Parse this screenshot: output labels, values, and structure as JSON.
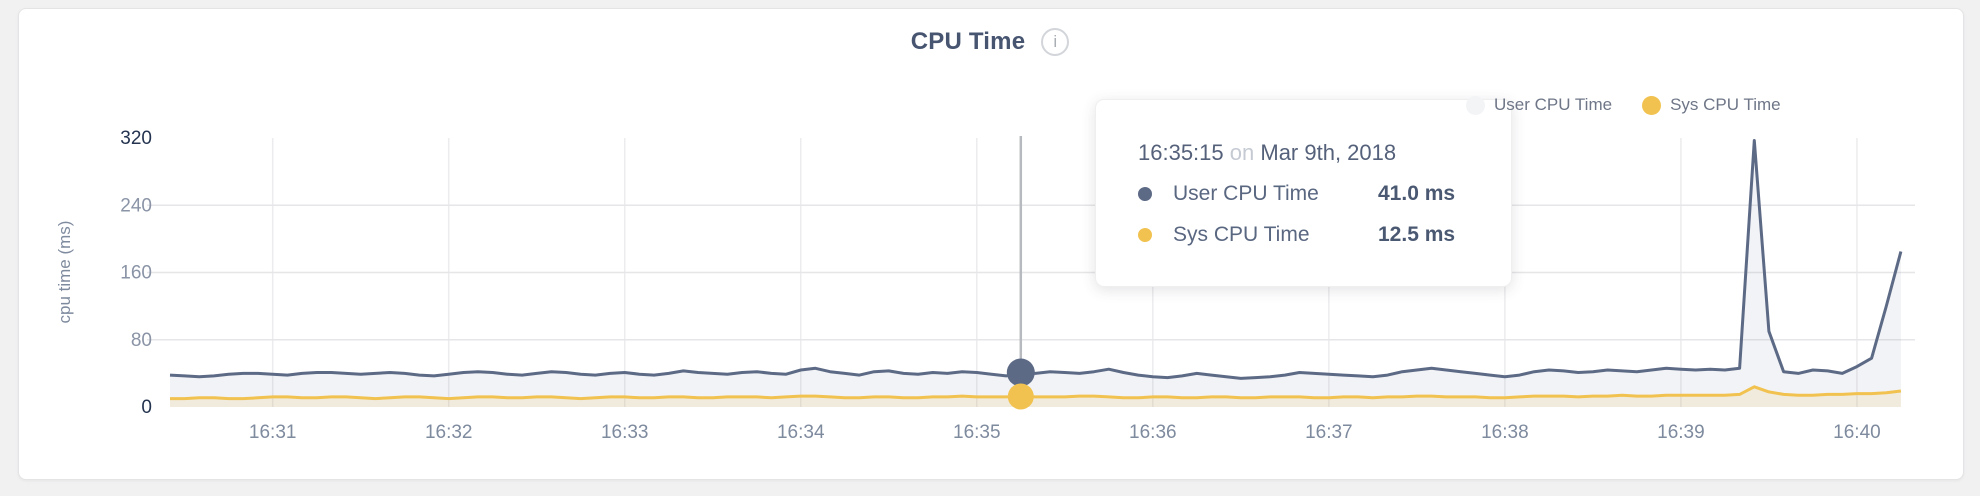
{
  "chart": {
    "title": "CPU Time",
    "info_icon": "i",
    "ylabel": "cpu time (ms)",
    "legend": [
      {
        "label": "User CPU Time",
        "marker_color": "#f3f4f6"
      },
      {
        "label": "Sys CPU Time",
        "marker_color": "#f1c250"
      }
    ]
  },
  "tooltip": {
    "time": "16:35:15",
    "conjunction": "on",
    "date": "Mar 9th, 2018",
    "rows": [
      {
        "label": "User CPU Time",
        "value": "41.0 ms",
        "color": "#5d6a86"
      },
      {
        "label": "Sys CPU Time",
        "value": "12.5 ms",
        "color": "#f1c250"
      }
    ]
  },
  "chart_data": {
    "type": "area",
    "title": "CPU Time",
    "ylabel": "cpu time (ms)",
    "ylim": [
      0,
      320
    ],
    "yticks": [
      0,
      80,
      160,
      240,
      320
    ],
    "ytick_emphasized": [
      0,
      320
    ],
    "x_tick_labels": [
      "16:31",
      "16:32",
      "16:33",
      "16:34",
      "16:35",
      "16:36",
      "16:37",
      "16:38",
      "16:39",
      "16:40"
    ],
    "start_time": "16:30:25",
    "interval_seconds": 5,
    "first_tick_index": 7,
    "ticks_every_points": 12,
    "grid": true,
    "legend_position": "top-right",
    "series": [
      {
        "name": "User CPU Time",
        "color": "#5d6a86",
        "fill": "rgba(94,107,134,0.08)",
        "values": [
          38,
          37,
          36,
          37,
          39,
          40,
          40,
          39,
          38,
          40,
          41,
          41,
          40,
          39,
          40,
          41,
          40,
          38,
          37,
          39,
          41,
          42,
          41,
          39,
          38,
          40,
          42,
          41,
          39,
          38,
          40,
          41,
          39,
          38,
          40,
          43,
          41,
          40,
          39,
          41,
          42,
          40,
          39,
          44,
          46,
          42,
          40,
          38,
          42,
          43,
          40,
          39,
          41,
          40,
          42,
          41,
          39,
          37,
          41,
          40,
          42,
          41,
          40,
          42,
          45,
          41,
          38,
          36,
          35,
          37,
          40,
          38,
          36,
          34,
          35,
          36,
          38,
          41,
          40,
          39,
          38,
          37,
          36,
          38,
          42,
          44,
          46,
          44,
          42,
          40,
          38,
          36,
          38,
          42,
          44,
          43,
          41,
          42,
          44,
          43,
          42,
          44,
          46,
          45,
          44,
          45,
          44,
          46,
          317,
          90,
          42,
          40,
          44,
          43,
          40,
          48,
          58,
          120,
          185
        ]
      },
      {
        "name": "Sys CPU Time",
        "color": "#f1c250",
        "fill": "rgba(241,194,80,0.14)",
        "values": [
          10,
          10,
          11,
          11,
          10,
          10,
          11,
          12,
          12,
          11,
          11,
          12,
          12,
          11,
          10,
          11,
          12,
          12,
          11,
          10,
          11,
          12,
          12,
          11,
          11,
          12,
          12,
          11,
          10,
          11,
          12,
          12,
          11,
          11,
          12,
          12,
          11,
          11,
          12,
          12,
          12,
          11,
          12,
          13,
          13,
          12,
          11,
          11,
          12,
          12,
          11,
          11,
          12,
          12,
          13,
          12,
          12,
          12,
          12.5,
          12,
          12,
          12,
          13,
          13,
          12,
          11,
          11,
          12,
          12,
          11,
          11,
          12,
          12,
          11,
          11,
          12,
          12,
          12,
          11,
          11,
          12,
          12,
          11,
          12,
          12,
          13,
          13,
          12,
          12,
          12,
          11,
          11,
          12,
          13,
          13,
          13,
          12,
          13,
          13,
          14,
          13,
          13,
          14,
          14,
          14,
          14,
          14,
          15,
          24,
          18,
          15,
          14,
          14,
          15,
          15,
          16,
          16,
          17,
          19
        ]
      }
    ],
    "hover": {
      "index": 58,
      "time": "16:35:15",
      "date": "Mar 9th, 2018",
      "user_ms": 41.0,
      "sys_ms": 12.5,
      "line_color": "#b7babf"
    }
  }
}
